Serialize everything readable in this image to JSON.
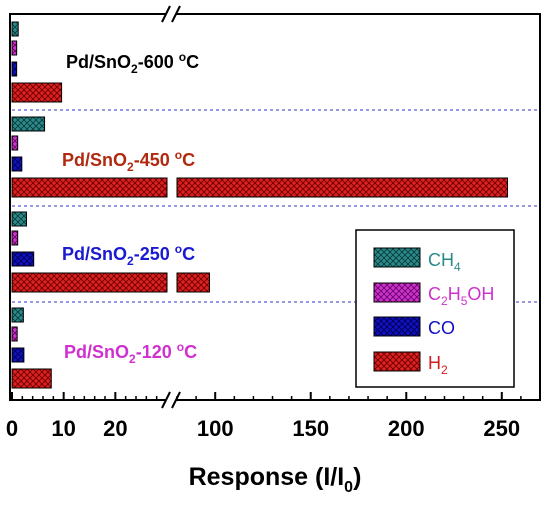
{
  "chart_data": {
    "type": "bar",
    "orientation": "horizontal",
    "broken_x_axis": true,
    "segments": [
      {
        "range": [
          0,
          30
        ],
        "ticks": [
          0,
          10,
          20
        ]
      },
      {
        "range": [
          80,
          270
        ],
        "ticks": [
          100,
          150,
          200,
          250
        ]
      }
    ],
    "xlabel": "Response (I/I0)",
    "xlabel_parts": {
      "main": "Response (I/I",
      "sub": "0",
      "tail": ")"
    },
    "legend_position": "lower-right",
    "series": [
      {
        "name": "CH4",
        "label_parts": {
          "main": "CH",
          "sub": "4"
        },
        "color": "#2a8a8a",
        "hatch": "crosshatch"
      },
      {
        "name": "C2H5OH",
        "label_parts": {
          "pre": "C",
          "s1": "2",
          "mid": "H",
          "s2": "5",
          "post": "OH"
        },
        "color": "#cc33cc",
        "hatch": "crosshatch"
      },
      {
        "name": "CO",
        "label_parts": {
          "main": "CO"
        },
        "color": "#1010c0",
        "hatch": "crosshatch"
      },
      {
        "name": "H2",
        "label_parts": {
          "main": "H",
          "sub": "2"
        },
        "color": "#dd2020",
        "hatch": "crosshatch"
      }
    ],
    "groups": [
      {
        "name": "Pd/SnO2-600 °C",
        "label_parts": {
          "main": "Pd/SnO",
          "sub": "2",
          "tail": "-600 ",
          "deg": "o",
          "unit": "C"
        },
        "label_color": "#000000",
        "values": [
          1.2,
          0.9,
          0.9,
          9.6
        ]
      },
      {
        "name": "Pd/SnO2-450 °C",
        "label_parts": {
          "main": "Pd/SnO",
          "sub": "2",
          "tail": "-450 ",
          "deg": "o",
          "unit": "C"
        },
        "label_color": "#b02a10",
        "values": [
          6.3,
          1.1,
          1.9,
          253
        ]
      },
      {
        "name": "Pd/SnO2-250 °C",
        "label_parts": {
          "main": "Pd/SnO",
          "sub": "2",
          "tail": "-250 ",
          "deg": "o",
          "unit": "C"
        },
        "label_color": "#1a1ad0",
        "values": [
          2.8,
          1.1,
          4.2,
          97
        ]
      },
      {
        "name": "Pd/SnO2-120 °C",
        "label_parts": {
          "main": "Pd/SnO",
          "sub": "2",
          "tail": "-120 ",
          "deg": "o",
          "unit": "C"
        },
        "label_color": "#d030d0",
        "values": [
          2.2,
          1.0,
          2.3,
          7.6
        ]
      }
    ],
    "colors": {
      "axis": "#000000",
      "separator": "#3333cc",
      "background": "#ffffff"
    }
  }
}
